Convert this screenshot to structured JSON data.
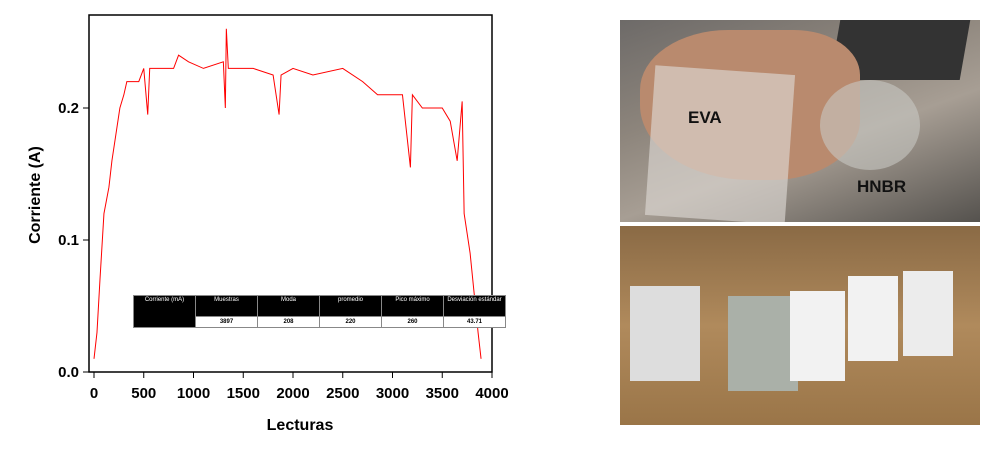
{
  "chart_data": {
    "type": "line",
    "xlabel": "Lecturas",
    "ylabel": "Corriente (A)",
    "xlim": [
      -50,
      4000
    ],
    "ylim": [
      0,
      0.27
    ],
    "xticks": [
      "0",
      "500",
      "1000",
      "1500",
      "2000",
      "2500",
      "3000",
      "3500",
      "4000"
    ],
    "yticks": [
      "0.0",
      "0.1",
      "0.2"
    ],
    "grid": false,
    "line_color": "#ff0000",
    "x": [
      0,
      30,
      60,
      100,
      150,
      180,
      220,
      260,
      300,
      330,
      450,
      500,
      540,
      560,
      800,
      850,
      950,
      1100,
      1300,
      1320,
      1330,
      1350,
      1600,
      1800,
      1860,
      1880,
      2000,
      2200,
      2500,
      2700,
      2850,
      3100,
      3180,
      3200,
      3300,
      3500,
      3580,
      3650,
      3700,
      3720,
      3780,
      3820,
      3860,
      3890
    ],
    "y": [
      0.01,
      0.03,
      0.07,
      0.12,
      0.14,
      0.16,
      0.18,
      0.2,
      0.21,
      0.22,
      0.22,
      0.23,
      0.195,
      0.23,
      0.23,
      0.24,
      0.235,
      0.23,
      0.235,
      0.2,
      0.26,
      0.23,
      0.23,
      0.225,
      0.195,
      0.225,
      0.23,
      0.225,
      0.23,
      0.22,
      0.21,
      0.21,
      0.155,
      0.21,
      0.2,
      0.2,
      0.19,
      0.16,
      0.205,
      0.12,
      0.09,
      0.06,
      0.03,
      0.01
    ],
    "table": {
      "headers": [
        "Corriente (mA)",
        "Muestras",
        "Moda",
        "promedio",
        "Pico máximo",
        "Desviación estándar"
      ],
      "values": [
        "3897",
        "208",
        "220",
        "260",
        "43.71"
      ]
    }
  },
  "photos": {
    "top_labels": [
      "EVA",
      "HNBR"
    ]
  }
}
